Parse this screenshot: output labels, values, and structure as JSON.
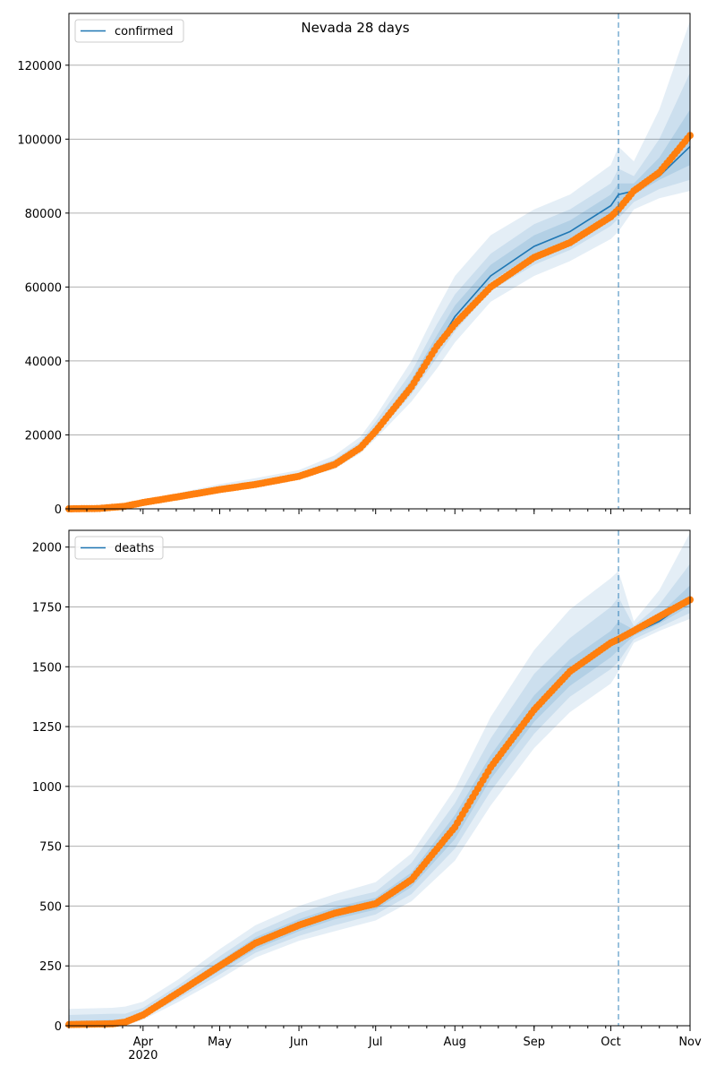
{
  "figure": {
    "title": "Nevada 28 days"
  },
  "colors": {
    "model_line": "#1f77b4",
    "band": "#1f77b4",
    "observed": "#ff7f0e",
    "vline": "#1f77b4",
    "grid": "#b0b0b0",
    "axis": "#000000"
  },
  "x_axis": {
    "tick_labels": [
      "Apr",
      "May",
      "Jun",
      "Jul",
      "Aug",
      "Sep",
      "Oct",
      "Nov"
    ],
    "year_label": "2020",
    "range": [
      "2020-03-03",
      "2020-11-01"
    ]
  },
  "chart_data": [
    {
      "type": "line",
      "legend": "confirmed",
      "legend_placement": "top-left",
      "grid": "y",
      "ylim": [
        0,
        134000
      ],
      "y_ticks": [
        0,
        20000,
        40000,
        60000,
        80000,
        100000,
        120000
      ],
      "forecast_start": "2020-10-04",
      "x": [
        "2020-03-03",
        "2020-03-15",
        "2020-03-25",
        "2020-04-01",
        "2020-04-15",
        "2020-05-01",
        "2020-05-15",
        "2020-06-01",
        "2020-06-15",
        "2020-06-25",
        "2020-07-01",
        "2020-07-15",
        "2020-07-25",
        "2020-08-01",
        "2020-08-15",
        "2020-09-01",
        "2020-09-15",
        "2020-10-01",
        "2020-10-04",
        "2020-10-10",
        "2020-10-20",
        "2020-11-01"
      ],
      "model": [
        0,
        100,
        600,
        1700,
        3300,
        5200,
        6600,
        8800,
        12000,
        16500,
        21000,
        33000,
        44000,
        52000,
        63000,
        71000,
        75000,
        82000,
        85000,
        86000,
        90000,
        98000
      ],
      "observed": [
        0,
        100,
        700,
        1700,
        3300,
        5200,
        6600,
        8800,
        12000,
        16500,
        21000,
        33000,
        44000,
        50000,
        60000,
        68000,
        72000,
        79000,
        81000,
        86000,
        91000,
        101000
      ],
      "bands": [
        {
          "level": "outer",
          "lower": [
            0,
            0,
            300,
            1100,
            2600,
            4300,
            5700,
            7900,
            10800,
            15000,
            19000,
            29000,
            38000,
            45000,
            56000,
            63000,
            67000,
            73000,
            75000,
            81000,
            84000,
            86000
          ],
          "upper": [
            0,
            300,
            1000,
            2400,
            4300,
            6700,
            8300,
            10500,
            14500,
            19500,
            25000,
            40000,
            54000,
            63000,
            74000,
            81000,
            85000,
            93000,
            98000,
            94000,
            108000,
            132000
          ]
        },
        {
          "level": "middle",
          "lower": [
            0,
            0,
            400,
            1300,
            2900,
            4700,
            6100,
            8300,
            11300,
            15700,
            20000,
            31000,
            41000,
            48000,
            59000,
            66000,
            70000,
            76500,
            78500,
            83000,
            86500,
            89000
          ],
          "upper": [
            0,
            200,
            800,
            2100,
            3900,
            6100,
            7500,
            9700,
            13400,
            18200,
            23500,
            37000,
            50000,
            58000,
            69000,
            77000,
            81000,
            88000,
            92000,
            90000,
            100000,
            118000
          ]
        },
        {
          "level": "inner",
          "lower": [
            0,
            50,
            500,
            1500,
            3100,
            5000,
            6400,
            8600,
            11700,
            16200,
            20500,
            32000,
            43000,
            50500,
            61500,
            69000,
            73000,
            79500,
            82000,
            85000,
            89000,
            93000
          ],
          "upper": [
            0,
            150,
            700,
            1900,
            3600,
            5600,
            7000,
            9200,
            12700,
            17300,
            22000,
            35000,
            47000,
            55000,
            66000,
            74000,
            78000,
            85000,
            88000,
            88000,
            95000,
            108000
          ]
        }
      ]
    },
    {
      "type": "line",
      "legend": "deaths",
      "legend_placement": "top-left",
      "grid": "y",
      "ylim": [
        0,
        2070
      ],
      "y_ticks": [
        0,
        250,
        500,
        750,
        1000,
        1250,
        1500,
        1750,
        2000
      ],
      "forecast_start": "2020-10-04",
      "x": [
        "2020-03-03",
        "2020-03-20",
        "2020-03-25",
        "2020-04-01",
        "2020-04-15",
        "2020-05-01",
        "2020-05-15",
        "2020-06-01",
        "2020-06-15",
        "2020-07-01",
        "2020-07-15",
        "2020-08-01",
        "2020-08-15",
        "2020-09-01",
        "2020-09-15",
        "2020-10-01",
        "2020-10-04",
        "2020-10-10",
        "2020-10-20",
        "2020-11-01"
      ],
      "model": [
        5,
        8,
        15,
        45,
        140,
        250,
        345,
        420,
        470,
        510,
        610,
        830,
        1080,
        1320,
        1470,
        1590,
        1610,
        1640,
        1690,
        1780
      ],
      "observed": [
        5,
        8,
        15,
        45,
        140,
        250,
        345,
        420,
        470,
        510,
        610,
        830,
        1080,
        1320,
        1480,
        1600,
        1615,
        1650,
        1710,
        1780
      ],
      "bands": [
        {
          "level": "outer",
          "lower": [
            0,
            0,
            0,
            25,
            100,
            195,
            285,
            355,
            395,
            440,
            520,
            690,
            920,
            1160,
            1310,
            1430,
            1480,
            1600,
            1650,
            1700
          ],
          "upper": [
            70,
            75,
            80,
            100,
            195,
            320,
            420,
            500,
            550,
            600,
            720,
            990,
            1290,
            1570,
            1740,
            1870,
            1900,
            1690,
            1820,
            2060
          ]
        },
        {
          "level": "middle",
          "lower": [
            0,
            0,
            5,
            32,
            115,
            215,
            305,
            375,
            420,
            465,
            550,
            740,
            980,
            1220,
            1375,
            1490,
            1520,
            1615,
            1665,
            1725
          ],
          "upper": [
            45,
            50,
            50,
            75,
            170,
            290,
            390,
            470,
            520,
            560,
            680,
            930,
            1200,
            1470,
            1620,
            1750,
            1790,
            1670,
            1760,
            1930
          ]
        },
        {
          "level": "inner",
          "lower": [
            0,
            2,
            8,
            38,
            125,
            230,
            320,
            395,
            445,
            485,
            580,
            780,
            1030,
            1270,
            1420,
            1540,
            1570,
            1630,
            1680,
            1755
          ],
          "upper": [
            20,
            25,
            25,
            55,
            155,
            270,
            370,
            445,
            495,
            535,
            640,
            880,
            1130,
            1380,
            1530,
            1650,
            1690,
            1655,
            1720,
            1840
          ]
        }
      ]
    }
  ]
}
